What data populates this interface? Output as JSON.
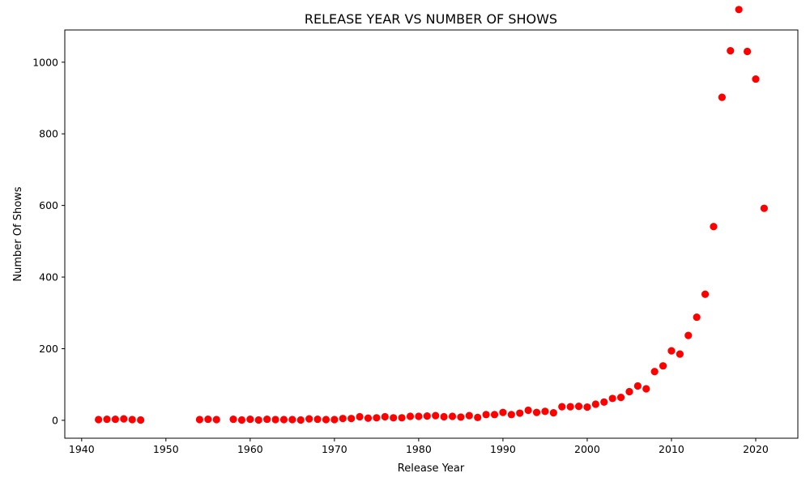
{
  "chart_data": {
    "type": "scatter",
    "title": "RELEASE YEAR VS NUMBER OF SHOWS",
    "xlabel": "Release Year",
    "ylabel": "Number Of Shows",
    "xlim": [
      1938,
      2025
    ],
    "ylim": [
      -50,
      1090
    ],
    "xticks": [
      1940,
      1950,
      1960,
      1970,
      1980,
      1990,
      2000,
      2010,
      2020
    ],
    "yticks": [
      0,
      200,
      400,
      600,
      800,
      1000
    ],
    "grid": false,
    "marker_color": "#ff0000",
    "x": [
      1942,
      1943,
      1944,
      1945,
      1946,
      1947,
      1954,
      1955,
      1956,
      1958,
      1959,
      1960,
      1961,
      1962,
      1963,
      1964,
      1965,
      1966,
      1967,
      1968,
      1969,
      1970,
      1971,
      1972,
      1973,
      1974,
      1975,
      1976,
      1977,
      1978,
      1979,
      1980,
      1981,
      1982,
      1983,
      1984,
      1985,
      1986,
      1987,
      1988,
      1989,
      1990,
      1991,
      1992,
      1993,
      1994,
      1995,
      1996,
      1997,
      1998,
      1999,
      2000,
      2001,
      2002,
      2003,
      2004,
      2005,
      2006,
      2007,
      2008,
      2009,
      2010,
      2011,
      2012,
      2013,
      2014,
      2015,
      2016,
      2017,
      2018,
      2019,
      2020,
      2021
    ],
    "y": [
      2,
      3,
      3,
      4,
      2,
      1,
      2,
      3,
      2,
      3,
      1,
      3,
      1,
      3,
      2,
      2,
      2,
      1,
      4,
      3,
      2,
      2,
      5,
      5,
      10,
      6,
      7,
      10,
      7,
      7,
      11,
      11,
      12,
      13,
      10,
      11,
      9,
      13,
      8,
      16,
      16,
      22,
      16,
      20,
      28,
      22,
      25,
      21,
      38,
      38,
      39,
      37,
      45,
      51,
      61,
      64,
      80,
      96,
      88,
      136,
      152,
      194,
      185,
      237,
      288,
      352,
      541,
      902,
      1032,
      1147,
      1030,
      953,
      592
    ]
  }
}
